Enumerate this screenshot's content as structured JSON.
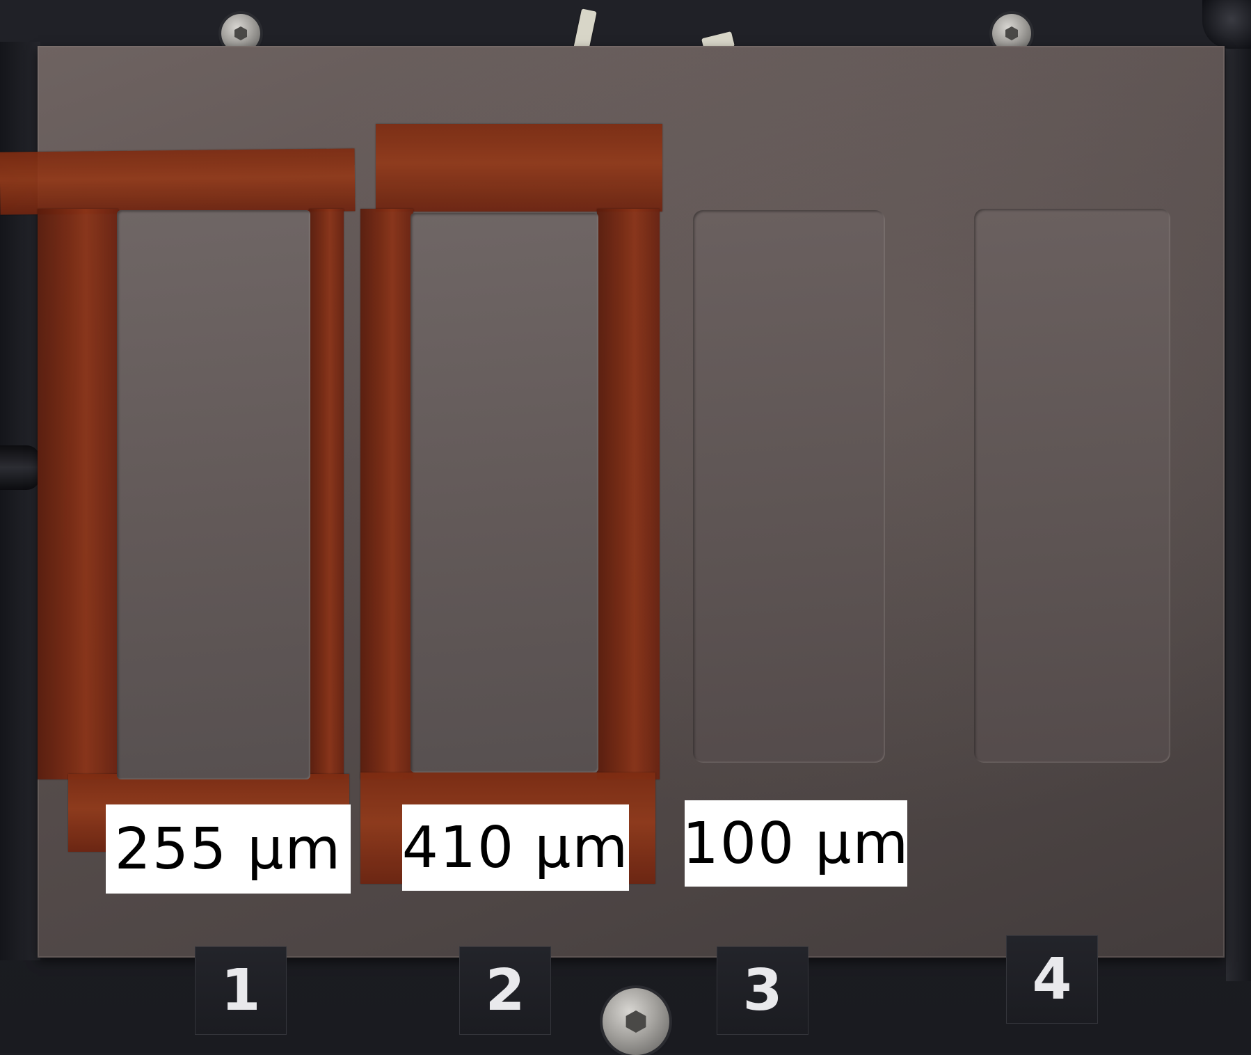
{
  "labels": {
    "well_1": "255 μm",
    "well_2": "410 μm",
    "well_3": "100 μm"
  },
  "slot_numbers": {
    "n1": "1",
    "n2": "2",
    "n3": "3",
    "n4": "4"
  },
  "colors": {
    "tape": "#7a2a12",
    "plate": "#5a504f",
    "label_background": "#ffffff"
  }
}
